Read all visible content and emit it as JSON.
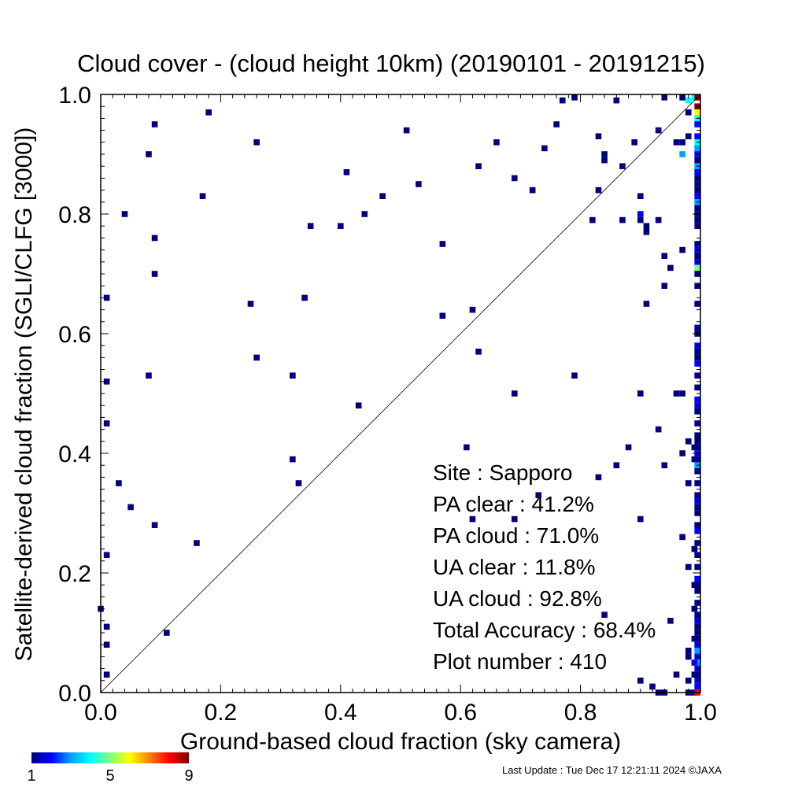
{
  "chart_data": {
    "type": "heatmap",
    "title": "Cloud cover - (cloud height 10km)  (20190101 - 20191215)",
    "xlabel": "Ground-based cloud fraction (sky camera)",
    "ylabel": "Satellite-derived cloud fraction (SGLI/CLFG [3000])",
    "xlim": [
      0,
      1
    ],
    "ylim": [
      0,
      1
    ],
    "xticks": [
      "0.0",
      "0.2",
      "0.4",
      "0.6",
      "0.8",
      "1.0"
    ],
    "yticks": [
      "0.0",
      "0.2",
      "0.4",
      "0.6",
      "0.8",
      "1.0"
    ],
    "diagonal_line": true,
    "colorbar": {
      "min": 1,
      "max": 9,
      "tick_labels": [
        "1",
        "5",
        "9"
      ],
      "colors": [
        "#000080",
        "#0000ff",
        "#00a0ff",
        "#00ffff",
        "#80ff80",
        "#ffff00",
        "#ff8000",
        "#ff0000",
        "#800000"
      ]
    },
    "stats": [
      "Site : Sapporo",
      "PA clear :  41.2%",
      "PA cloud :  71.0%",
      "UA clear :  11.8%",
      "UA cloud :  92.8%",
      "Total Accuracy :  68.4%",
      "Plot number :       410"
    ],
    "points": [
      [
        0.09,
        0.95,
        1
      ],
      [
        0.18,
        0.97,
        1
      ],
      [
        0.08,
        0.9,
        1
      ],
      [
        0.26,
        0.92,
        1
      ],
      [
        0.51,
        0.94,
        1
      ],
      [
        0.41,
        0.87,
        1
      ],
      [
        0.17,
        0.83,
        1
      ],
      [
        0.04,
        0.8,
        1
      ],
      [
        0.09,
        0.76,
        1
      ],
      [
        0.35,
        0.78,
        1
      ],
      [
        0.4,
        0.78,
        1
      ],
      [
        0.44,
        0.8,
        1
      ],
      [
        0.47,
        0.83,
        1
      ],
      [
        0.53,
        0.85,
        1
      ],
      [
        0.09,
        0.7,
        1
      ],
      [
        0.01,
        0.66,
        1
      ],
      [
        0.25,
        0.65,
        1
      ],
      [
        0.34,
        0.66,
        1
      ],
      [
        0.57,
        0.75,
        1
      ],
      [
        0.26,
        0.56,
        1
      ],
      [
        0.08,
        0.53,
        1
      ],
      [
        0.01,
        0.52,
        1
      ],
      [
        0.32,
        0.53,
        1
      ],
      [
        0.43,
        0.48,
        1
      ],
      [
        0.57,
        0.63,
        1
      ],
      [
        0.62,
        0.64,
        1
      ],
      [
        0.63,
        0.57,
        1
      ],
      [
        0.01,
        0.45,
        1
      ],
      [
        0.03,
        0.35,
        1
      ],
      [
        0.05,
        0.31,
        1
      ],
      [
        0.09,
        0.28,
        1
      ],
      [
        0.16,
        0.25,
        1
      ],
      [
        0.32,
        0.39,
        1
      ],
      [
        0.33,
        0.35,
        1
      ],
      [
        0.01,
        0.23,
        1
      ],
      [
        0.0,
        0.14,
        1
      ],
      [
        0.01,
        0.11,
        1
      ],
      [
        0.01,
        0.08,
        1
      ],
      [
        0.11,
        0.1,
        1
      ],
      [
        0.01,
        0.03,
        1
      ],
      [
        0.61,
        0.41,
        1
      ],
      [
        0.62,
        0.29,
        1
      ],
      [
        0.69,
        0.29,
        1
      ],
      [
        0.69,
        0.5,
        1
      ],
      [
        0.73,
        0.33,
        1
      ],
      [
        0.79,
        0.53,
        1
      ],
      [
        0.83,
        0.36,
        1
      ],
      [
        0.86,
        0.38,
        1
      ],
      [
        0.88,
        0.41,
        1
      ],
      [
        0.9,
        0.5,
        1
      ],
      [
        0.9,
        0.29,
        1
      ],
      [
        0.93,
        0.44,
        1
      ],
      [
        0.94,
        0.38,
        1
      ],
      [
        0.96,
        0.5,
        1
      ],
      [
        0.97,
        0.5,
        1
      ],
      [
        0.84,
        0.13,
        1
      ],
      [
        0.9,
        0.02,
        1
      ],
      [
        0.92,
        0.01,
        1
      ],
      [
        0.93,
        0.0,
        1
      ],
      [
        0.94,
        0.0,
        1
      ],
      [
        0.95,
        0.12,
        1
      ],
      [
        0.96,
        0.03,
        1
      ],
      [
        0.63,
        0.88,
        1
      ],
      [
        0.66,
        0.92,
        1
      ],
      [
        0.69,
        0.86,
        1
      ],
      [
        0.72,
        0.84,
        1
      ],
      [
        0.74,
        0.91,
        1
      ],
      [
        0.76,
        0.95,
        1
      ],
      [
        0.77,
        0.99,
        1
      ],
      [
        0.79,
        1.0,
        1
      ],
      [
        0.82,
        0.79,
        1
      ],
      [
        0.83,
        0.84,
        1
      ],
      [
        0.83,
        0.93,
        1
      ],
      [
        0.84,
        0.9,
        1
      ],
      [
        0.84,
        0.89,
        1
      ],
      [
        0.86,
        0.99,
        1
      ],
      [
        0.87,
        0.88,
        1
      ],
      [
        0.87,
        0.79,
        1
      ],
      [
        0.89,
        0.92,
        1
      ],
      [
        0.9,
        0.83,
        1
      ],
      [
        0.9,
        0.79,
        1
      ],
      [
        0.91,
        0.78,
        1
      ],
      [
        0.91,
        0.77,
        1
      ],
      [
        0.91,
        0.65,
        1
      ],
      [
        0.93,
        0.79,
        1
      ],
      [
        0.93,
        0.94,
        1
      ],
      [
        0.94,
        0.73,
        1
      ],
      [
        0.94,
        0.68,
        1
      ],
      [
        0.94,
        1.0,
        1
      ],
      [
        0.95,
        0.71,
        1
      ],
      [
        0.96,
        0.92,
        1
      ],
      [
        0.97,
        0.92,
        1
      ],
      [
        0.97,
        1.0,
        1
      ],
      [
        0.98,
        0.93,
        1
      ],
      [
        0.98,
        0.06,
        1
      ],
      [
        0.98,
        0.0,
        1
      ],
      [
        0.99,
        0.0,
        1
      ],
      [
        0.9,
        0.8,
        2
      ],
      [
        0.97,
        0.9,
        3
      ],
      [
        0.98,
        0.99,
        4
      ],
      [
        0.99,
        1.0,
        4
      ],
      [
        0.98,
        0.97,
        1
      ],
      [
        1.0,
        1.0,
        9
      ],
      [
        1.0,
        0.98,
        9
      ],
      [
        1.0,
        0.97,
        6
      ],
      [
        1.0,
        0.96,
        4
      ],
      [
        1.0,
        0.95,
        2
      ],
      [
        1.0,
        0.93,
        2
      ],
      [
        1.0,
        0.92,
        4
      ],
      [
        1.0,
        0.91,
        3
      ],
      [
        1.0,
        0.9,
        2
      ],
      [
        1.0,
        0.89,
        1
      ],
      [
        1.0,
        0.88,
        3
      ],
      [
        1.0,
        0.87,
        2
      ],
      [
        1.0,
        0.86,
        1
      ],
      [
        1.0,
        0.85,
        1
      ],
      [
        1.0,
        0.84,
        1
      ],
      [
        1.0,
        0.83,
        2
      ],
      [
        1.0,
        0.82,
        3
      ],
      [
        1.0,
        0.81,
        1
      ],
      [
        1.0,
        0.8,
        1
      ],
      [
        1.0,
        0.79,
        1
      ],
      [
        1.0,
        0.78,
        1
      ],
      [
        1.0,
        0.75,
        1
      ],
      [
        1.0,
        0.74,
        2
      ],
      [
        1.0,
        0.73,
        1
      ],
      [
        1.0,
        0.72,
        2
      ],
      [
        1.0,
        0.71,
        5
      ],
      [
        1.0,
        0.7,
        1
      ],
      [
        1.0,
        0.68,
        1
      ],
      [
        1.0,
        0.65,
        1
      ],
      [
        1.0,
        0.61,
        1
      ],
      [
        1.0,
        0.6,
        1
      ],
      [
        1.0,
        0.58,
        2
      ],
      [
        1.0,
        0.57,
        1
      ],
      [
        1.0,
        0.56,
        1
      ],
      [
        1.0,
        0.55,
        2
      ],
      [
        1.0,
        0.53,
        1
      ],
      [
        1.0,
        0.51,
        1
      ],
      [
        1.0,
        0.49,
        2
      ],
      [
        1.0,
        0.48,
        2
      ],
      [
        1.0,
        0.47,
        1
      ],
      [
        1.0,
        0.45,
        1
      ],
      [
        1.0,
        0.43,
        1
      ],
      [
        1.0,
        0.42,
        1
      ],
      [
        1.0,
        0.41,
        1
      ],
      [
        1.0,
        0.4,
        2
      ],
      [
        1.0,
        0.39,
        1
      ],
      [
        1.0,
        0.38,
        3
      ],
      [
        1.0,
        0.37,
        1
      ],
      [
        1.0,
        0.35,
        1
      ],
      [
        1.0,
        0.33,
        1
      ],
      [
        1.0,
        0.32,
        2
      ],
      [
        1.0,
        0.31,
        1
      ],
      [
        1.0,
        0.3,
        1
      ],
      [
        1.0,
        0.28,
        1
      ],
      [
        1.0,
        0.27,
        2
      ],
      [
        1.0,
        0.25,
        1
      ],
      [
        1.0,
        0.23,
        1
      ],
      [
        1.0,
        0.21,
        1
      ],
      [
        1.0,
        0.19,
        2
      ],
      [
        1.0,
        0.18,
        1
      ],
      [
        1.0,
        0.17,
        1
      ],
      [
        1.0,
        0.15,
        1
      ],
      [
        1.0,
        0.13,
        1
      ],
      [
        1.0,
        0.12,
        2
      ],
      [
        1.0,
        0.11,
        1
      ],
      [
        1.0,
        0.1,
        1
      ],
      [
        1.0,
        0.09,
        1
      ],
      [
        1.0,
        0.08,
        2
      ],
      [
        1.0,
        0.07,
        3
      ],
      [
        1.0,
        0.06,
        2
      ],
      [
        1.0,
        0.05,
        3
      ],
      [
        1.0,
        0.04,
        2
      ],
      [
        1.0,
        0.03,
        1
      ],
      [
        1.0,
        0.02,
        2
      ],
      [
        1.0,
        0.01,
        2
      ],
      [
        1.0,
        0.0,
        8
      ],
      [
        0.99,
        0.41,
        1
      ],
      [
        0.99,
        0.39,
        1
      ],
      [
        0.99,
        0.24,
        1
      ],
      [
        0.99,
        0.18,
        1
      ],
      [
        0.99,
        0.14,
        1
      ],
      [
        0.99,
        0.09,
        1
      ],
      [
        0.99,
        0.05,
        2
      ],
      [
        0.99,
        0.03,
        1
      ],
      [
        0.98,
        0.42,
        1
      ],
      [
        0.98,
        0.35,
        1
      ],
      [
        0.98,
        0.21,
        1
      ],
      [
        0.98,
        0.07,
        1
      ],
      [
        0.98,
        0.02,
        1
      ],
      [
        0.97,
        0.74,
        1
      ],
      [
        0.97,
        0.4,
        1
      ],
      [
        0.97,
        0.26,
        1
      ]
    ]
  },
  "footer": {
    "last_update": "Last Update : Tue Dec 17 12:21:11 2024  ©JAXA"
  }
}
